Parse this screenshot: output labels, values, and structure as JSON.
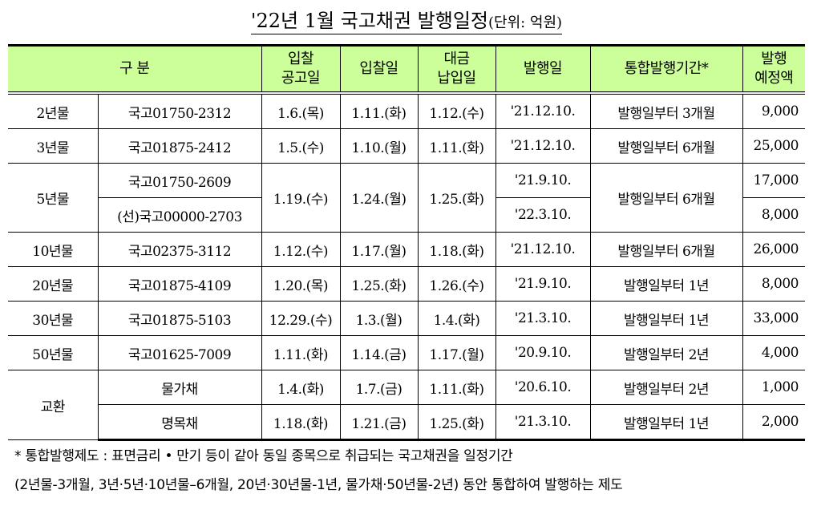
{
  "title": "'22년 1월 국고채권 발행일정",
  "unit": "(단위: 억원)",
  "header": {
    "category": "구 분",
    "notice": [
      "입찰",
      "공고일"
    ],
    "bid": "입찰일",
    "payment": [
      "대금",
      "납입일"
    ],
    "issue": "발행일",
    "period": "통합발행기간*",
    "amount": [
      "발행",
      "예정액"
    ]
  },
  "rows": [
    {
      "term": "2년물",
      "code": "국고01750-2312",
      "notice": "1.6.(목)",
      "bid": "1.11.(화)",
      "pay": "1.12.(수)",
      "issue": "'21.12.10.",
      "period": "발행일부터 3개월",
      "amount": "9,000"
    },
    {
      "term": "3년물",
      "code": "국고01875-2412",
      "notice": "1.5.(수)",
      "bid": "1.10.(월)",
      "pay": "1.11.(화)",
      "issue": "'21.12.10.",
      "period": "발행일부터 6개월",
      "amount": "25,000"
    },
    {
      "term": "5년물",
      "code": "국고01750-2609",
      "notice": "1.19.(수)",
      "bid": "1.24.(월)",
      "pay": "1.25.(화)",
      "issue": "'21.9.10.",
      "period": "발행일부터 6개월",
      "amount": "17,000"
    },
    {
      "code": "(선)국고00000-2703",
      "issue": "'22.3.10.",
      "amount": "8,000"
    },
    {
      "term": "10년물",
      "code": "국고02375-3112",
      "notice": "1.12.(수)",
      "bid": "1.17.(월)",
      "pay": "1.18.(화)",
      "issue": "'21.12.10.",
      "period": "발행일부터 6개월",
      "amount": "26,000"
    },
    {
      "term": "20년물",
      "code": "국고01875-4109",
      "notice": "1.20.(목)",
      "bid": "1.25.(화)",
      "pay": "1.26.(수)",
      "issue": "'21.9.10.",
      "period": "발행일부터 1년",
      "amount": "8,000"
    },
    {
      "term": "30년물",
      "code": "국고01875-5103",
      "notice": "12.29.(수)",
      "bid": "1.3.(월)",
      "pay": "1.4.(화)",
      "issue": "'21.3.10.",
      "period": "발행일부터 1년",
      "amount": "33,000"
    },
    {
      "term": "50년물",
      "code": "국고01625-7009",
      "notice": "1.11.(화)",
      "bid": "1.14.(금)",
      "pay": "1.17.(월)",
      "issue": "'20.9.10.",
      "period": "발행일부터 2년",
      "amount": "4,000"
    },
    {
      "term": "교환",
      "code": "물가채",
      "notice": "1.4.(화)",
      "bid": "1.7.(금)",
      "pay": "1.11.(화)",
      "issue": "'20.6.10.",
      "period": "발행일부터 2년",
      "amount": "1,000"
    },
    {
      "code": "명목채",
      "notice": "1.18.(화)",
      "bid": "1.21.(금)",
      "pay": "1.25.(화)",
      "issue": "'21.3.10.",
      "period": "발행일부터 1년",
      "amount": "2,000"
    }
  ],
  "footnote": [
    "* 통합발행제도 : 표면금리 • 만기 등이 같아 동일 종목으로 취급되는 국고채권을 일정기간",
    "(2년물-3개월, 3년·5년·10년물–6개월, 20년·30년물-1년, 물가채·50년물-2년) 동안 통합하여 발행하는 제도"
  ]
}
